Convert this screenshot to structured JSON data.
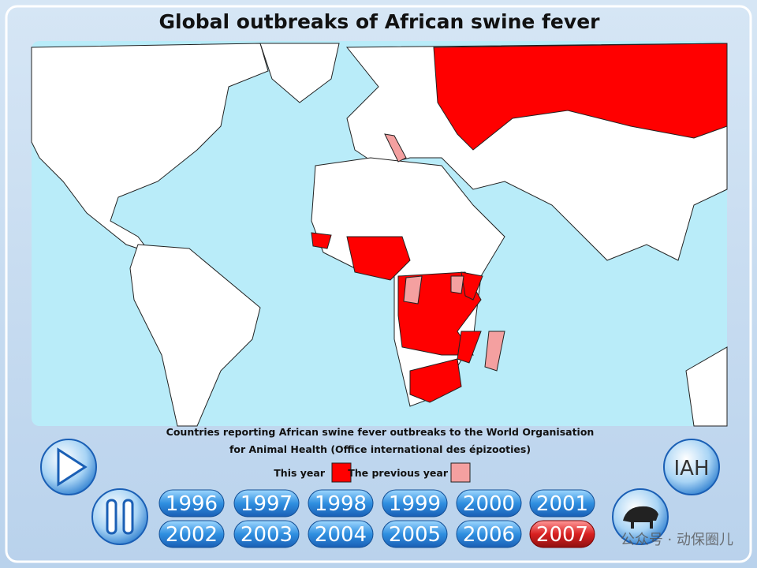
{
  "header": {
    "title": "Global outbreaks of African swine fever"
  },
  "caption": {
    "line1": "Countries reporting African swine fever outbreaks to the World Organisation",
    "line2": "for Animal Health (Office international des épizooties)"
  },
  "legend": {
    "this_year": "This year",
    "previous_year": "The previous year"
  },
  "buttons": {
    "years": [
      "1996",
      "1997",
      "1998",
      "1999",
      "2000",
      "2001",
      "2002",
      "2003",
      "2004",
      "2005",
      "2006",
      "2007"
    ],
    "selected": "2007",
    "logo": "IAH"
  },
  "watermark": "公众号 · 动保圈儿"
}
